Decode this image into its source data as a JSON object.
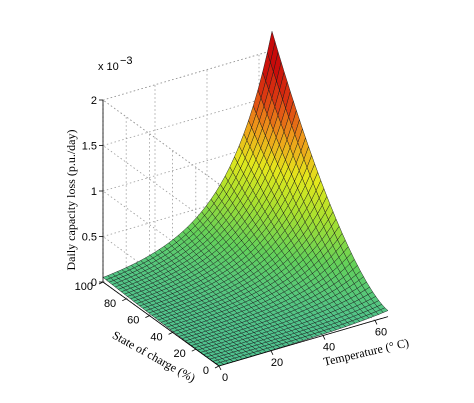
{
  "chart_data": {
    "type": "surface",
    "xlabel": "Temperature (° C)",
    "ylabel": "State of charge (%)",
    "zlabel": "Daily capacity loss (p.u./day)",
    "zscale_label": "x 10",
    "zscale_exponent": "−3",
    "x_ticks": [
      0,
      20,
      40,
      60
    ],
    "x_tick_labels": [
      "0",
      "20",
      "40",
      "60"
    ],
    "y_ticks": [
      0,
      20,
      40,
      60,
      80,
      100
    ],
    "y_tick_labels": [
      "0",
      "20",
      "40",
      "60",
      "80",
      "100"
    ],
    "z_ticks": [
      0,
      0.5,
      1,
      1.5,
      2
    ],
    "z_tick_labels": [
      "0",
      "0.5",
      "1",
      "1.5",
      "2"
    ],
    "xlim": [
      0,
      65
    ],
    "ylim": [
      0,
      100
    ],
    "zlim": [
      0,
      2
    ],
    "z_unit_multiplier": 0.001,
    "grid": true,
    "colormap": [
      "#4fc28f",
      "#63d05a",
      "#a7e030",
      "#e4e81c",
      "#ee9a1a",
      "#dc3a12",
      "#c80a0a"
    ],
    "surface_samples": {
      "temperature_c": [
        0,
        65,
        0,
        65
      ],
      "state_of_charge_pct": [
        0,
        0,
        100,
        100
      ],
      "loss_x1e-3": [
        0.0,
        0.28,
        0.05,
        2.28
      ]
    }
  }
}
